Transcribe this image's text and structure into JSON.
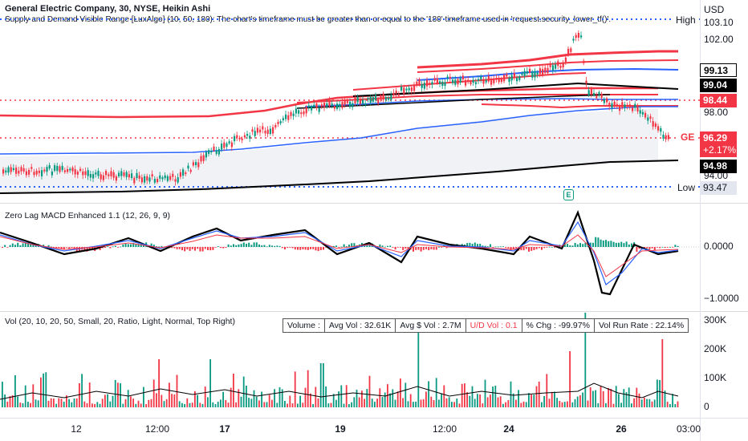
{
  "header": {
    "title": "General Electric Company, 30, NYSE, Heikin Ashi",
    "subtitle": "Supply and Demand Visible Range [LuxAlgo] (10, 50, 180): The chart's timeframe must be greater than or equal to the '180' timeframe used in 'request.security_lower_tf()'."
  },
  "price_axis": {
    "currency": "USD",
    "ticks": [
      "103.10",
      "102.00",
      "98.00",
      "94.00"
    ],
    "tags": [
      {
        "label": "99.13",
        "style": "dark"
      },
      {
        "label": "99.04",
        "style": "dark"
      },
      {
        "label": "98.44",
        "style": "red"
      },
      {
        "label": "96.29",
        "style": "red"
      },
      {
        "label": "+2.17%",
        "style": "red"
      },
      {
        "label": "94.98",
        "style": "dark"
      },
      {
        "label": "93.47",
        "style": "light"
      }
    ],
    "high_label": "High",
    "low_label": "Low",
    "symbol": "GE",
    "earnings_marker": "E"
  },
  "macd": {
    "title": "Zero Lag MACD Enhanced 1.1 (12, 26, 9, 9)",
    "ticks": [
      "0.0000",
      "−1.0000"
    ]
  },
  "volume": {
    "title": "Vol (20, 10, 20, 50, Small, 20, Ratio, Light, Normal, Top Right)",
    "ticks": [
      "300K",
      "200K",
      "100K",
      "0"
    ],
    "stats": [
      {
        "label": "Volume :",
        "color": "#131722"
      },
      {
        "label": "Avg Vol : 32.61K",
        "color": "#131722"
      },
      {
        "label": "Avg $ Vol : 2.7M",
        "color": "#131722"
      },
      {
        "label": "U/D Vol : 0.1",
        "color": "#f23645"
      },
      {
        "label": "% Chg : -99.97%",
        "color": "#131722"
      },
      {
        "label": "Vol Run Rate : 22.14%",
        "color": "#131722"
      }
    ]
  },
  "time_axis": {
    "labels": [
      {
        "text": "12",
        "bold": false
      },
      {
        "text": "12:00",
        "bold": false
      },
      {
        "text": "17",
        "bold": true
      },
      {
        "text": "19",
        "bold": true
      },
      {
        "text": "12:00",
        "bold": false
      },
      {
        "text": "24",
        "bold": true
      },
      {
        "text": "26",
        "bold": true
      },
      {
        "text": "03:00",
        "bold": false
      }
    ]
  },
  "colors": {
    "up": "#089981",
    "down": "#f23645",
    "supply_red": "#f23645",
    "blue": "#2962ff",
    "black": "#000000",
    "dotted_blue": "#2962ff",
    "dotted_red": "#f23645"
  }
}
